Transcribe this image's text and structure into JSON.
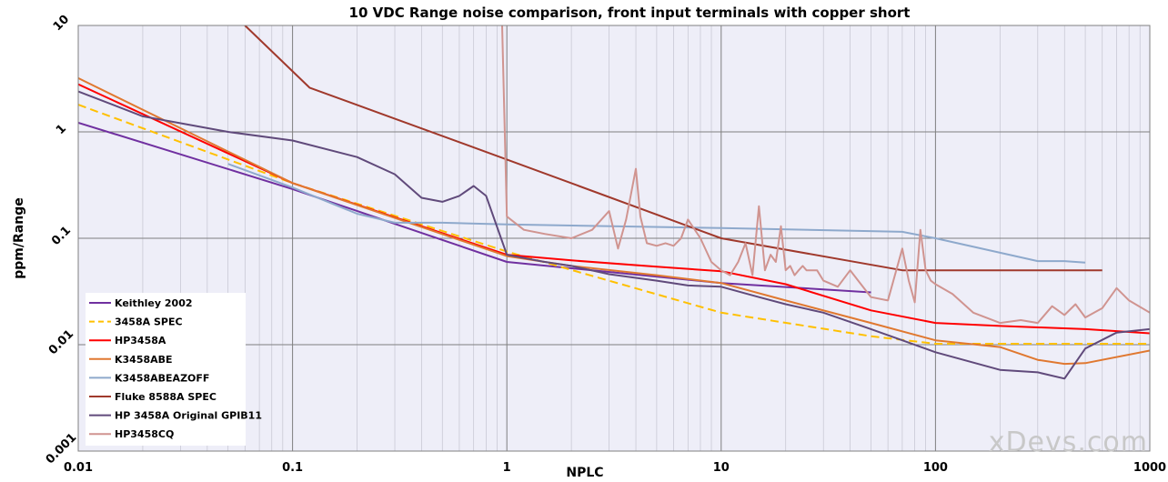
{
  "chart_data": {
    "type": "line",
    "title": "10 VDC Range noise comparison, front input terminals with copper short",
    "xlabel": "NPLC",
    "ylabel": "ppm/Range",
    "xscale": "log",
    "yscale": "log",
    "xlim": [
      0.01,
      1000
    ],
    "ylim": [
      0.001,
      10
    ],
    "grid": true,
    "legend_position": "bottom-left",
    "x_ticks": [
      0.01,
      0.1,
      1,
      10,
      100,
      1000
    ],
    "x_tick_labels": [
      "0.01",
      "0.1",
      "1",
      "10",
      "100",
      "1000"
    ],
    "y_ticks": [
      0.001,
      0.01,
      0.1,
      1,
      10
    ],
    "y_tick_labels": [
      "0.001",
      "0.01",
      "0.1",
      "1",
      "10"
    ],
    "plot_background": "#eeeef8",
    "watermark": "xDevs.com",
    "series": [
      {
        "name": "Keithley 2002",
        "color": "#7030a0",
        "dash": "solid",
        "x": [
          0.01,
          0.1,
          1,
          10,
          50
        ],
        "y": [
          1.22,
          0.29,
          0.06,
          0.038,
          0.031
        ]
      },
      {
        "name": "3458A SPEC",
        "color": "#ffc000",
        "dash": "dashed",
        "x": [
          0.01,
          0.1,
          1,
          10,
          50,
          100,
          1000
        ],
        "y": [
          1.8,
          0.33,
          0.075,
          0.02,
          0.012,
          0.0102,
          0.0102
        ]
      },
      {
        "name": "HP3458A",
        "color": "#ff0000",
        "dash": "solid",
        "x": [
          0.01,
          0.1,
          1,
          2,
          5,
          10,
          20,
          50,
          100,
          200,
          500,
          1000
        ],
        "y": [
          2.8,
          0.33,
          0.07,
          0.062,
          0.054,
          0.049,
          0.037,
          0.021,
          0.016,
          0.015,
          0.014,
          0.0128
        ]
      },
      {
        "name": "K3458ABE",
        "color": "#e07830",
        "dash": "solid",
        "x": [
          0.01,
          0.1,
          1,
          2,
          5,
          10,
          20,
          50,
          100,
          200,
          300,
          400,
          500,
          1000
        ],
        "y": [
          3.2,
          0.33,
          0.068,
          0.055,
          0.045,
          0.038,
          0.026,
          0.016,
          0.011,
          0.0095,
          0.0072,
          0.0066,
          0.0067,
          0.0088
        ]
      },
      {
        "name": "K3458ABEAZOFF",
        "color": "#8ea9cc",
        "dash": "solid",
        "x": [
          0.05,
          0.1,
          0.2,
          0.3,
          0.5,
          1,
          10,
          70,
          100,
          300,
          400,
          500
        ],
        "y": [
          0.5,
          0.3,
          0.17,
          0.14,
          0.14,
          0.135,
          0.125,
          0.115,
          0.1,
          0.061,
          0.061,
          0.059
        ]
      },
      {
        "name": "Fluke 8588A SPEC",
        "color": "#a0392c",
        "dash": "solid",
        "x": [
          0.06,
          0.12,
          1,
          10,
          70,
          100,
          600
        ],
        "y": [
          10,
          2.6,
          0.55,
          0.1,
          0.05,
          0.05,
          0.05
        ]
      },
      {
        "name": "HP 3458A Original GPIB11",
        "color": "#604a7b",
        "dash": "solid",
        "x": [
          0.01,
          0.02,
          0.05,
          0.1,
          0.2,
          0.3,
          0.4,
          0.5,
          0.6,
          0.7,
          0.8,
          1,
          1.5,
          2,
          3,
          5,
          7,
          10,
          15,
          20,
          30,
          50,
          70,
          100,
          200,
          300,
          400,
          500,
          700,
          1000
        ],
        "y": [
          2.4,
          1.4,
          1.0,
          0.83,
          0.58,
          0.4,
          0.24,
          0.22,
          0.25,
          0.31,
          0.25,
          0.07,
          0.06,
          0.055,
          0.046,
          0.04,
          0.036,
          0.035,
          0.028,
          0.024,
          0.02,
          0.014,
          0.011,
          0.0085,
          0.0058,
          0.0055,
          0.0048,
          0.0092,
          0.013,
          0.014
        ]
      },
      {
        "name": "HP3458CQ",
        "color": "#d09490",
        "dash": "solid",
        "x": [
          0.95,
          1,
          1.2,
          1.5,
          2,
          2.5,
          3,
          3.3,
          3.6,
          4,
          4.2,
          4.5,
          5,
          5.5,
          6,
          6.5,
          7,
          8,
          9,
          10,
          11,
          12,
          13,
          14,
          15,
          16,
          17,
          18,
          19,
          20,
          21,
          22,
          23,
          24,
          25,
          28,
          30,
          35,
          40,
          50,
          60,
          70,
          75,
          80,
          85,
          90,
          95,
          100,
          120,
          150,
          200,
          250,
          300,
          350,
          400,
          450,
          500,
          550,
          600,
          700,
          800,
          1000
        ],
        "y": [
          10,
          0.16,
          0.12,
          0.11,
          0.1,
          0.12,
          0.18,
          0.08,
          0.15,
          0.45,
          0.16,
          0.09,
          0.085,
          0.09,
          0.085,
          0.1,
          0.15,
          0.1,
          0.06,
          0.05,
          0.045,
          0.06,
          0.09,
          0.045,
          0.2,
          0.05,
          0.07,
          0.06,
          0.13,
          0.05,
          0.055,
          0.045,
          0.05,
          0.055,
          0.05,
          0.05,
          0.04,
          0.035,
          0.05,
          0.028,
          0.026,
          0.08,
          0.04,
          0.025,
          0.12,
          0.05,
          0.04,
          0.037,
          0.03,
          0.02,
          0.016,
          0.017,
          0.016,
          0.023,
          0.019,
          0.024,
          0.018,
          0.02,
          0.022,
          0.034,
          0.026,
          0.02
        ]
      }
    ]
  }
}
